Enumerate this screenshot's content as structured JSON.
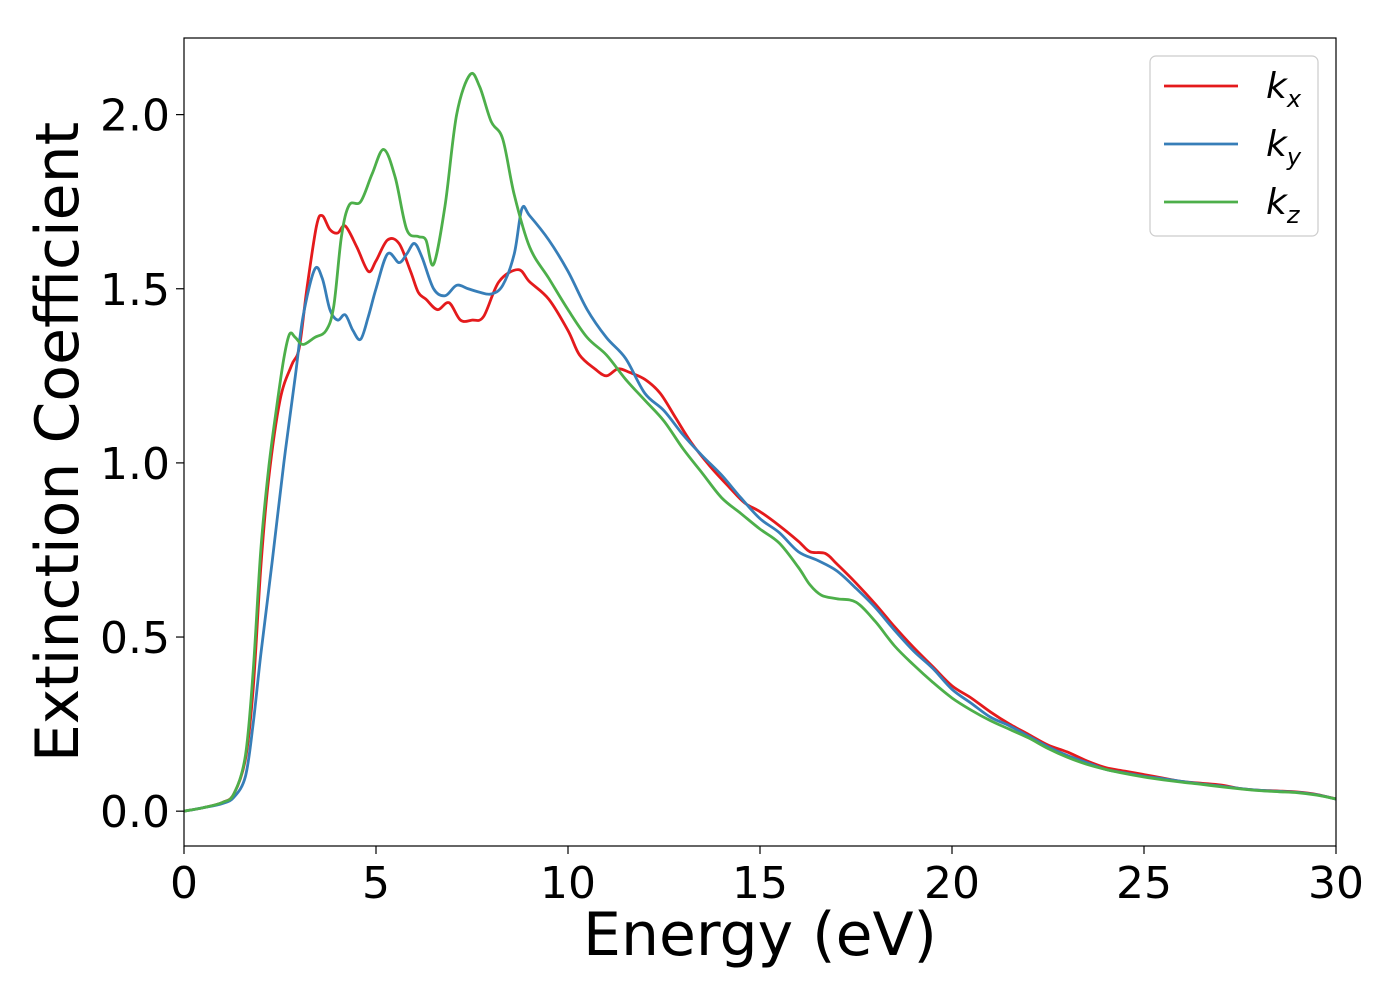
{
  "chart_data": {
    "type": "line",
    "title": "",
    "xlabel": "Energy (eV)",
    "ylabel": "Extinction Coefficient",
    "xlim": [
      0,
      30
    ],
    "ylim": [
      -0.1,
      2.22
    ],
    "xticks": [
      0,
      5,
      10,
      15,
      20,
      25,
      30
    ],
    "xtick_labels": [
      "0",
      "5",
      "10",
      "15",
      "20",
      "25",
      "30"
    ],
    "yticks": [
      0.0,
      0.5,
      1.0,
      1.5,
      2.0
    ],
    "ytick_labels": [
      "0.0",
      "0.5",
      "1.0",
      "1.5",
      "2.0"
    ],
    "grid": false,
    "legend_position": "top-right",
    "series": [
      {
        "name": "k_x",
        "legend_main": "k",
        "legend_sub": "x",
        "color": "#e41a1c",
        "points": [
          [
            0,
            0
          ],
          [
            0.5,
            0.01
          ],
          [
            1.0,
            0.025
          ],
          [
            1.3,
            0.05
          ],
          [
            1.6,
            0.15
          ],
          [
            1.8,
            0.35
          ],
          [
            2.0,
            0.7
          ],
          [
            2.2,
            0.95
          ],
          [
            2.5,
            1.18
          ],
          [
            2.8,
            1.28
          ],
          [
            3.0,
            1.33
          ],
          [
            3.2,
            1.5
          ],
          [
            3.45,
            1.68
          ],
          [
            3.6,
            1.71
          ],
          [
            3.8,
            1.67
          ],
          [
            4.0,
            1.66
          ],
          [
            4.2,
            1.68
          ],
          [
            4.5,
            1.62
          ],
          [
            4.8,
            1.55
          ],
          [
            5.0,
            1.58
          ],
          [
            5.3,
            1.64
          ],
          [
            5.6,
            1.63
          ],
          [
            5.9,
            1.55
          ],
          [
            6.1,
            1.49
          ],
          [
            6.3,
            1.47
          ],
          [
            6.6,
            1.44
          ],
          [
            6.9,
            1.46
          ],
          [
            7.2,
            1.41
          ],
          [
            7.5,
            1.41
          ],
          [
            7.8,
            1.42
          ],
          [
            8.2,
            1.52
          ],
          [
            8.7,
            1.555
          ],
          [
            9.0,
            1.52
          ],
          [
            9.5,
            1.47
          ],
          [
            10.0,
            1.38
          ],
          [
            10.3,
            1.31
          ],
          [
            10.7,
            1.27
          ],
          [
            11.0,
            1.25
          ],
          [
            11.3,
            1.27
          ],
          [
            11.6,
            1.26
          ],
          [
            12.0,
            1.24
          ],
          [
            12.4,
            1.2
          ],
          [
            12.8,
            1.13
          ],
          [
            13.2,
            1.06
          ],
          [
            13.7,
            0.99
          ],
          [
            14.2,
            0.93
          ],
          [
            14.6,
            0.885
          ],
          [
            15.0,
            0.86
          ],
          [
            15.5,
            0.82
          ],
          [
            16.0,
            0.775
          ],
          [
            16.3,
            0.745
          ],
          [
            16.7,
            0.74
          ],
          [
            17.0,
            0.71
          ],
          [
            17.5,
            0.655
          ],
          [
            18.0,
            0.595
          ],
          [
            18.5,
            0.53
          ],
          [
            19.0,
            0.47
          ],
          [
            19.5,
            0.415
          ],
          [
            20.0,
            0.36
          ],
          [
            20.5,
            0.325
          ],
          [
            21.0,
            0.285
          ],
          [
            21.5,
            0.25
          ],
          [
            22.0,
            0.22
          ],
          [
            22.5,
            0.19
          ],
          [
            23.0,
            0.17
          ],
          [
            23.5,
            0.145
          ],
          [
            24.0,
            0.125
          ],
          [
            24.5,
            0.115
          ],
          [
            25.0,
            0.105
          ],
          [
            25.5,
            0.095
          ],
          [
            26.0,
            0.085
          ],
          [
            26.5,
            0.08
          ],
          [
            27.0,
            0.075
          ],
          [
            27.5,
            0.065
          ],
          [
            28.0,
            0.06
          ],
          [
            28.5,
            0.058
          ],
          [
            29.0,
            0.055
          ],
          [
            29.5,
            0.048
          ],
          [
            30.0,
            0.035
          ]
        ]
      },
      {
        "name": "k_y",
        "legend_main": "k",
        "legend_sub": "y",
        "color": "#377eb8",
        "points": [
          [
            0,
            0
          ],
          [
            0.5,
            0.01
          ],
          [
            1.0,
            0.022
          ],
          [
            1.3,
            0.04
          ],
          [
            1.6,
            0.1
          ],
          [
            1.8,
            0.25
          ],
          [
            2.0,
            0.45
          ],
          [
            2.3,
            0.72
          ],
          [
            2.6,
            1.0
          ],
          [
            2.9,
            1.25
          ],
          [
            3.1,
            1.42
          ],
          [
            3.4,
            1.555
          ],
          [
            3.6,
            1.53
          ],
          [
            3.8,
            1.44
          ],
          [
            4.0,
            1.41
          ],
          [
            4.2,
            1.425
          ],
          [
            4.4,
            1.38
          ],
          [
            4.6,
            1.355
          ],
          [
            4.8,
            1.42
          ],
          [
            5.0,
            1.5
          ],
          [
            5.3,
            1.6
          ],
          [
            5.6,
            1.575
          ],
          [
            5.8,
            1.6
          ],
          [
            6.0,
            1.63
          ],
          [
            6.2,
            1.59
          ],
          [
            6.5,
            1.5
          ],
          [
            6.8,
            1.48
          ],
          [
            7.1,
            1.51
          ],
          [
            7.4,
            1.5
          ],
          [
            7.7,
            1.49
          ],
          [
            8.0,
            1.485
          ],
          [
            8.3,
            1.51
          ],
          [
            8.6,
            1.6
          ],
          [
            8.8,
            1.73
          ],
          [
            9.0,
            1.71
          ],
          [
            9.5,
            1.64
          ],
          [
            10.0,
            1.55
          ],
          [
            10.5,
            1.44
          ],
          [
            11.0,
            1.36
          ],
          [
            11.5,
            1.3
          ],
          [
            12.0,
            1.2
          ],
          [
            12.5,
            1.15
          ],
          [
            13.0,
            1.08
          ],
          [
            13.5,
            1.02
          ],
          [
            14.0,
            0.965
          ],
          [
            14.5,
            0.9
          ],
          [
            15.0,
            0.84
          ],
          [
            15.5,
            0.8
          ],
          [
            16.0,
            0.745
          ],
          [
            16.5,
            0.72
          ],
          [
            17.0,
            0.69
          ],
          [
            17.5,
            0.64
          ],
          [
            18.0,
            0.585
          ],
          [
            18.5,
            0.52
          ],
          [
            19.0,
            0.46
          ],
          [
            19.5,
            0.41
          ],
          [
            20.0,
            0.35
          ],
          [
            20.5,
            0.31
          ],
          [
            21.0,
            0.27
          ],
          [
            21.5,
            0.245
          ],
          [
            22.0,
            0.215
          ],
          [
            22.5,
            0.185
          ],
          [
            23.0,
            0.16
          ],
          [
            23.5,
            0.14
          ],
          [
            24.0,
            0.12
          ],
          [
            24.5,
            0.11
          ],
          [
            25.0,
            0.1
          ],
          [
            25.5,
            0.093
          ],
          [
            26.0,
            0.085
          ],
          [
            26.5,
            0.078
          ],
          [
            27.0,
            0.072
          ],
          [
            27.5,
            0.065
          ],
          [
            28.0,
            0.06
          ],
          [
            28.5,
            0.057
          ],
          [
            29.0,
            0.054
          ],
          [
            29.5,
            0.047
          ],
          [
            30.0,
            0.035
          ]
        ]
      },
      {
        "name": "k_z",
        "legend_main": "k",
        "legend_sub": "z",
        "color": "#4daf4a",
        "points": [
          [
            0,
            0
          ],
          [
            0.5,
            0.01
          ],
          [
            1.0,
            0.025
          ],
          [
            1.3,
            0.05
          ],
          [
            1.6,
            0.16
          ],
          [
            1.8,
            0.4
          ],
          [
            2.0,
            0.75
          ],
          [
            2.2,
            0.98
          ],
          [
            2.4,
            1.15
          ],
          [
            2.6,
            1.3
          ],
          [
            2.75,
            1.37
          ],
          [
            2.9,
            1.36
          ],
          [
            3.1,
            1.34
          ],
          [
            3.4,
            1.36
          ],
          [
            3.7,
            1.38
          ],
          [
            3.9,
            1.45
          ],
          [
            4.1,
            1.65
          ],
          [
            4.3,
            1.74
          ],
          [
            4.6,
            1.75
          ],
          [
            4.9,
            1.83
          ],
          [
            5.2,
            1.9
          ],
          [
            5.5,
            1.82
          ],
          [
            5.8,
            1.67
          ],
          [
            6.1,
            1.65
          ],
          [
            6.3,
            1.64
          ],
          [
            6.5,
            1.57
          ],
          [
            6.8,
            1.74
          ],
          [
            7.1,
            2.0
          ],
          [
            7.45,
            2.115
          ],
          [
            7.7,
            2.08
          ],
          [
            8.0,
            1.98
          ],
          [
            8.3,
            1.93
          ],
          [
            8.6,
            1.77
          ],
          [
            9.0,
            1.62
          ],
          [
            9.5,
            1.53
          ],
          [
            10.0,
            1.44
          ],
          [
            10.5,
            1.36
          ],
          [
            11.0,
            1.31
          ],
          [
            11.5,
            1.24
          ],
          [
            12.0,
            1.18
          ],
          [
            12.5,
            1.12
          ],
          [
            13.0,
            1.04
          ],
          [
            13.5,
            0.97
          ],
          [
            14.0,
            0.9
          ],
          [
            14.5,
            0.855
          ],
          [
            15.0,
            0.81
          ],
          [
            15.5,
            0.77
          ],
          [
            16.0,
            0.7
          ],
          [
            16.3,
            0.65
          ],
          [
            16.6,
            0.62
          ],
          [
            17.0,
            0.61
          ],
          [
            17.5,
            0.6
          ],
          [
            18.0,
            0.545
          ],
          [
            18.5,
            0.475
          ],
          [
            19.0,
            0.42
          ],
          [
            19.5,
            0.37
          ],
          [
            20.0,
            0.325
          ],
          [
            20.5,
            0.29
          ],
          [
            21.0,
            0.26
          ],
          [
            21.5,
            0.235
          ],
          [
            22.0,
            0.21
          ],
          [
            22.5,
            0.18
          ],
          [
            23.0,
            0.155
          ],
          [
            23.5,
            0.135
          ],
          [
            24.0,
            0.12
          ],
          [
            24.5,
            0.108
          ],
          [
            25.0,
            0.098
          ],
          [
            25.5,
            0.09
          ],
          [
            26.0,
            0.083
          ],
          [
            26.5,
            0.077
          ],
          [
            27.0,
            0.07
          ],
          [
            27.5,
            0.064
          ],
          [
            28.0,
            0.059
          ],
          [
            28.5,
            0.056
          ],
          [
            29.0,
            0.053
          ],
          [
            29.5,
            0.046
          ],
          [
            30.0,
            0.035
          ]
        ]
      }
    ]
  }
}
